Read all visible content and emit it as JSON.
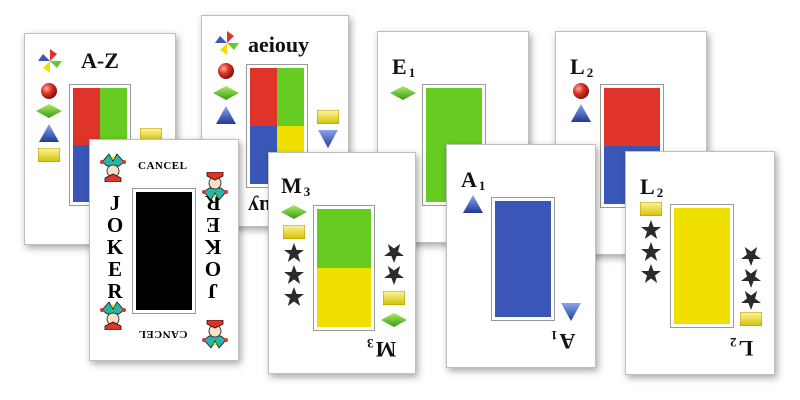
{
  "colors": {
    "red": "#e0332a",
    "green": "#66cc22",
    "blue": "#3a57b8",
    "yellow": "#f0e000",
    "black": "#000000",
    "star": "#2b2b2b"
  },
  "cards": {
    "az": {
      "label": "A-Z"
    },
    "aeiouy": {
      "label": "aeiouy"
    },
    "joker": {
      "word": "JOKER",
      "cancel": "CANCEL"
    },
    "m3": {
      "letter": "M",
      "num": "3"
    },
    "e1": {
      "letter": "E",
      "num": "1"
    },
    "a1": {
      "letter": "A",
      "num": "1"
    },
    "l2_back": {
      "letter": "L",
      "num": "2"
    },
    "l2_front": {
      "letter": "L",
      "num": "2"
    }
  }
}
